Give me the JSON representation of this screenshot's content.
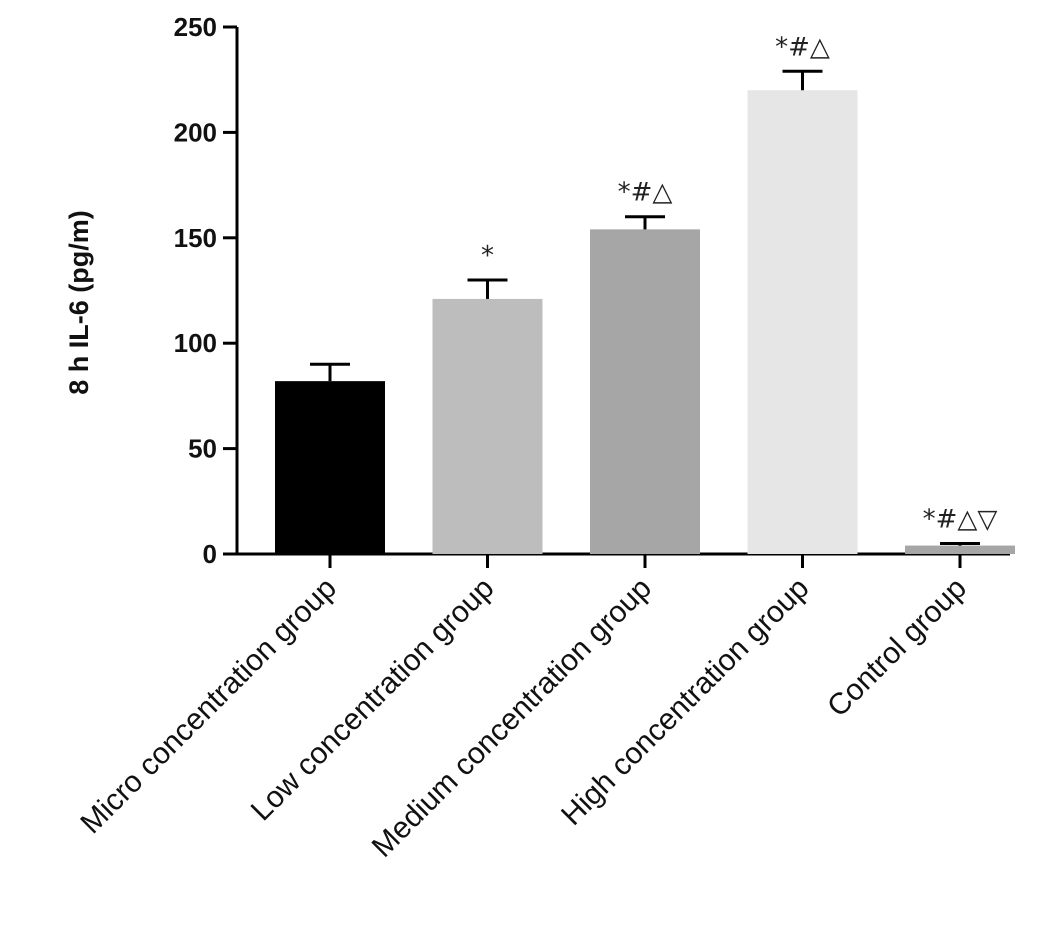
{
  "chart_data": {
    "type": "bar",
    "title": "",
    "xlabel": "",
    "ylabel": "8 h IL-6 (pg/m)",
    "ylim": [
      0,
      250
    ],
    "yticks": [
      0,
      50,
      100,
      150,
      200,
      250
    ],
    "grid": false,
    "legend": "none",
    "categories": [
      "Micro concentration group",
      "Low concentration group",
      "Medium concentration group",
      "High concentration group",
      "Control group"
    ],
    "values": [
      82,
      121,
      154,
      220,
      4
    ],
    "errors": [
      8,
      9,
      6,
      9,
      1
    ],
    "annotations": [
      "",
      "*",
      "*#△",
      "*#△",
      "*#△▽"
    ],
    "colors": [
      "#000000",
      "#bdbdbd",
      "#a6a6a6",
      "#e6e6e6",
      "#a6a6a6"
    ]
  }
}
